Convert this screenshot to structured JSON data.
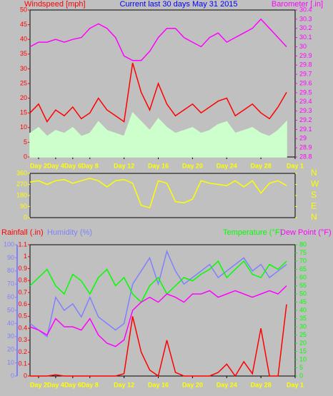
{
  "chart_data": [
    {
      "type": "line",
      "title": "Current last 30 days May 31 2015",
      "ylabel": "Windspeed [mph]",
      "y2label": "Barometer [.in]",
      "x": [
        1,
        2,
        3,
        4,
        5,
        6,
        7,
        8,
        9,
        10,
        11,
        12,
        13,
        14,
        15,
        16,
        17,
        18,
        19,
        20,
        21,
        22,
        23,
        24,
        25,
        26,
        27,
        28,
        29,
        30,
        31
      ],
      "xlim": [
        1,
        32
      ],
      "xticks": [
        {
          "value": 2,
          "label": "Day 2"
        },
        {
          "value": 4,
          "label": "Day 4"
        },
        {
          "value": 6,
          "label": "Day 6"
        },
        {
          "value": 8,
          "label": "Day 8"
        },
        {
          "value": 12,
          "label": "Day 12"
        },
        {
          "value": 16,
          "label": "Day 16"
        },
        {
          "value": 20,
          "label": "Day 20"
        },
        {
          "value": 24,
          "label": "Day 24"
        },
        {
          "value": 28,
          "label": "Day 28"
        },
        {
          "value": 32,
          "label": "Day 1"
        }
      ],
      "ylim": [
        0,
        50
      ],
      "yticks": [
        0,
        5,
        10,
        15,
        20,
        25,
        30,
        35,
        40,
        45,
        50
      ],
      "y2lim": [
        28.8,
        30.4
      ],
      "y2ticks": [
        28.8,
        28.9,
        29,
        29.1,
        29.2,
        29.3,
        29.4,
        29.5,
        29.6,
        29.7,
        29.8,
        29.9,
        30,
        30.1,
        30.2,
        30.3,
        30.4
      ],
      "series": [
        {
          "color": "#ff0000",
          "values": [
            15,
            18,
            12,
            16,
            14,
            17,
            13,
            15,
            20,
            16,
            14,
            12,
            32,
            22,
            16,
            25,
            18,
            14,
            16,
            18,
            15,
            17,
            19,
            20,
            14,
            16,
            18,
            15,
            13,
            17,
            22
          ]
        },
        {
          "color": "#ccffcc",
          "area": true,
          "values": [
            8,
            10,
            7,
            9,
            8,
            10,
            7,
            8,
            12,
            9,
            8,
            7,
            15,
            12,
            9,
            13,
            10,
            8,
            9,
            10,
            8,
            9,
            11,
            12,
            8,
            9,
            10,
            8,
            7,
            9,
            12
          ]
        },
        {
          "color": "#ff00ff",
          "axis": "y2",
          "values": [
            30.0,
            30.05,
            30.05,
            30.08,
            30.05,
            30.08,
            30.1,
            30.2,
            30.25,
            30.2,
            30.1,
            29.9,
            29.85,
            29.85,
            29.95,
            30.1,
            30.2,
            30.2,
            30.1,
            30.05,
            30.0,
            30.1,
            30.15,
            30.05,
            30.1,
            30.15,
            30.2,
            30.3,
            30.2,
            30.1,
            30.0
          ]
        }
      ]
    },
    {
      "type": "line",
      "x": [
        1,
        2,
        3,
        4,
        5,
        6,
        7,
        8,
        9,
        10,
        11,
        12,
        13,
        14,
        15,
        16,
        17,
        18,
        19,
        20,
        21,
        22,
        23,
        24,
        25,
        26,
        27,
        28,
        29,
        30,
        31
      ],
      "xlim": [
        1,
        32
      ],
      "ylim": [
        0,
        360
      ],
      "yticks": [
        0,
        90,
        180,
        270,
        360
      ],
      "y2lim": [
        0,
        360
      ],
      "y2ticks": [
        {
          "value": 360,
          "label": "N"
        },
        {
          "value": 270,
          "label": "W"
        },
        {
          "value": 180,
          "label": "S"
        },
        {
          "value": 90,
          "label": "E"
        },
        {
          "value": 0,
          "label": "N"
        }
      ],
      "series": [
        {
          "color": "#ffff00",
          "values": [
            290,
            300,
            270,
            300,
            310,
            280,
            300,
            320,
            300,
            250,
            300,
            310,
            280,
            100,
            80,
            300,
            280,
            130,
            120,
            150,
            300,
            280,
            270,
            260,
            300,
            250,
            300,
            200,
            280,
            300,
            260
          ]
        }
      ]
    },
    {
      "type": "line",
      "x": [
        1,
        2,
        3,
        4,
        5,
        6,
        7,
        8,
        9,
        10,
        11,
        12,
        13,
        14,
        15,
        16,
        17,
        18,
        19,
        20,
        21,
        22,
        23,
        24,
        25,
        26,
        27,
        28,
        29,
        30,
        31
      ],
      "xlim": [
        1,
        32
      ],
      "xticks": [
        {
          "value": 2,
          "label": "Day 2"
        },
        {
          "value": 4,
          "label": "Day 4"
        },
        {
          "value": 6,
          "label": "Day 6"
        },
        {
          "value": 8,
          "label": "Day 8"
        },
        {
          "value": 12,
          "label": "Day 12"
        },
        {
          "value": 16,
          "label": "Day 16"
        },
        {
          "value": 20,
          "label": "Day 20"
        },
        {
          "value": 24,
          "label": "Day 24"
        },
        {
          "value": 28,
          "label": "Day 28"
        },
        {
          "value": 32,
          "label": "Day 1"
        }
      ],
      "ylim": [
        0,
        1.1
      ],
      "yticks": [
        0,
        0.1,
        0.2,
        0.3,
        0.4,
        0.5,
        0.6,
        0.7,
        0.8,
        0.9,
        1,
        1.1
      ],
      "y3lim": [
        0,
        100
      ],
      "y3ticks": [
        0,
        10,
        20,
        30,
        40,
        50,
        60,
        70,
        80,
        90,
        100
      ],
      "y2lim": [
        0,
        80
      ],
      "y2ticks": [
        0,
        5,
        10,
        15,
        20,
        25,
        30,
        35,
        40,
        45,
        50,
        55,
        60,
        65,
        70,
        75,
        80
      ],
      "series": [
        {
          "name": "Rainfall (.in)",
          "color": "#ff0000",
          "values": [
            0,
            0,
            0,
            0.01,
            0,
            0,
            0,
            0,
            0,
            0,
            0,
            0.02,
            0.5,
            0.2,
            0.05,
            0,
            0.3,
            0.03,
            0,
            0,
            0,
            0,
            0.03,
            0.1,
            0,
            0.12,
            0.02,
            0.4,
            0,
            0,
            0.6
          ]
        },
        {
          "name": "Humidity (%)",
          "color": "#8080ff",
          "axis": "y3",
          "values": [
            40,
            35,
            30,
            60,
            50,
            55,
            45,
            60,
            45,
            40,
            35,
            40,
            70,
            80,
            90,
            70,
            95,
            80,
            70,
            75,
            80,
            85,
            75,
            80,
            85,
            90,
            80,
            85,
            75,
            80,
            85
          ]
        },
        {
          "name": "Temperature (°F)",
          "color": "#00ff00",
          "axis": "y2",
          "values": [
            55,
            60,
            65,
            55,
            50,
            62,
            58,
            50,
            60,
            65,
            55,
            60,
            50,
            45,
            55,
            60,
            50,
            55,
            60,
            58,
            62,
            65,
            70,
            60,
            65,
            70,
            62,
            60,
            68,
            65,
            70
          ]
        },
        {
          "name": "Dew Point (°F)",
          "color": "#ff00ff",
          "axis": "y2",
          "values": [
            30,
            28,
            25,
            35,
            30,
            30,
            28,
            35,
            25,
            20,
            18,
            22,
            40,
            45,
            48,
            45,
            50,
            48,
            45,
            50,
            50,
            52,
            48,
            50,
            52,
            50,
            48,
            50,
            52,
            50,
            55
          ]
        }
      ]
    }
  ]
}
